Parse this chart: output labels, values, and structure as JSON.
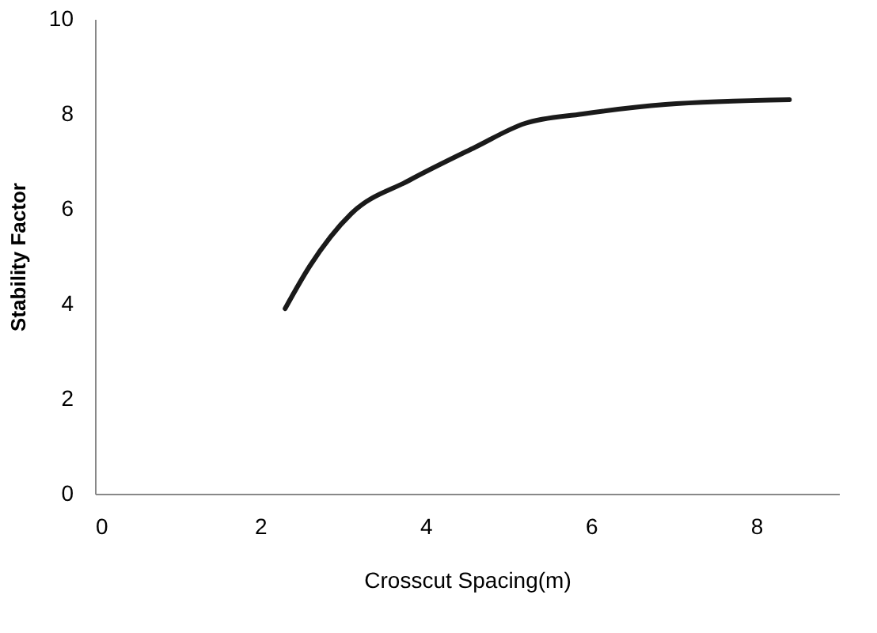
{
  "chart_data": {
    "type": "line",
    "xlabel": "Crosscut Spacing(m)",
    "ylabel": "Stability Factor",
    "x": [
      2.3,
      2.6,
      3.1,
      3.8,
      4.6,
      5.2,
      5.9,
      6.9,
      8.4
    ],
    "series": [
      {
        "color": "#1a1a1a",
        "values": [
          3.9,
          4.8,
          5.9,
          6.6,
          7.3,
          7.8,
          8.0,
          8.2,
          8.3
        ]
      }
    ],
    "xlim": [
      0,
      9
    ],
    "xticks": [
      0,
      2,
      4,
      6,
      8
    ],
    "ylim": [
      0,
      10
    ],
    "yticks": [
      0,
      2,
      4,
      6,
      8,
      10
    ],
    "grid": false,
    "marker": "none",
    "line_style": "solid"
  }
}
